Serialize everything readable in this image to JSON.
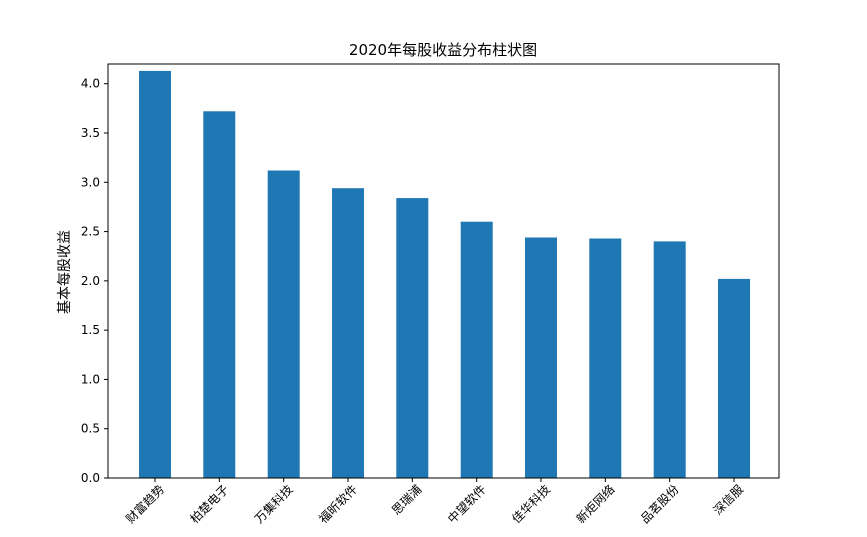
{
  "chart_data": {
    "type": "bar",
    "title": "2020年每股收益分布柱状图",
    "xlabel": "",
    "ylabel": "基本每股收益",
    "categories": [
      "财富趋势",
      "柏楚电子",
      "万集科技",
      "福昕软件",
      "思瑞浦",
      "中望软件",
      "佳华科技",
      "新炬网络",
      "品茗股份",
      "深信服"
    ],
    "values": [
      4.13,
      3.72,
      3.12,
      2.94,
      2.84,
      2.6,
      2.44,
      2.43,
      2.4,
      2.02
    ],
    "ylim": [
      0,
      4.2
    ],
    "yticks": [
      0.0,
      0.5,
      1.0,
      1.5,
      2.0,
      2.5,
      3.0,
      3.5,
      4.0
    ],
    "ytick_labels": [
      "0.0",
      "0.5",
      "1.0",
      "1.5",
      "2.0",
      "2.5",
      "3.0",
      "3.5",
      "4.0"
    ],
    "grid": false,
    "legend": "none",
    "bar_color": "#1f77b4"
  }
}
